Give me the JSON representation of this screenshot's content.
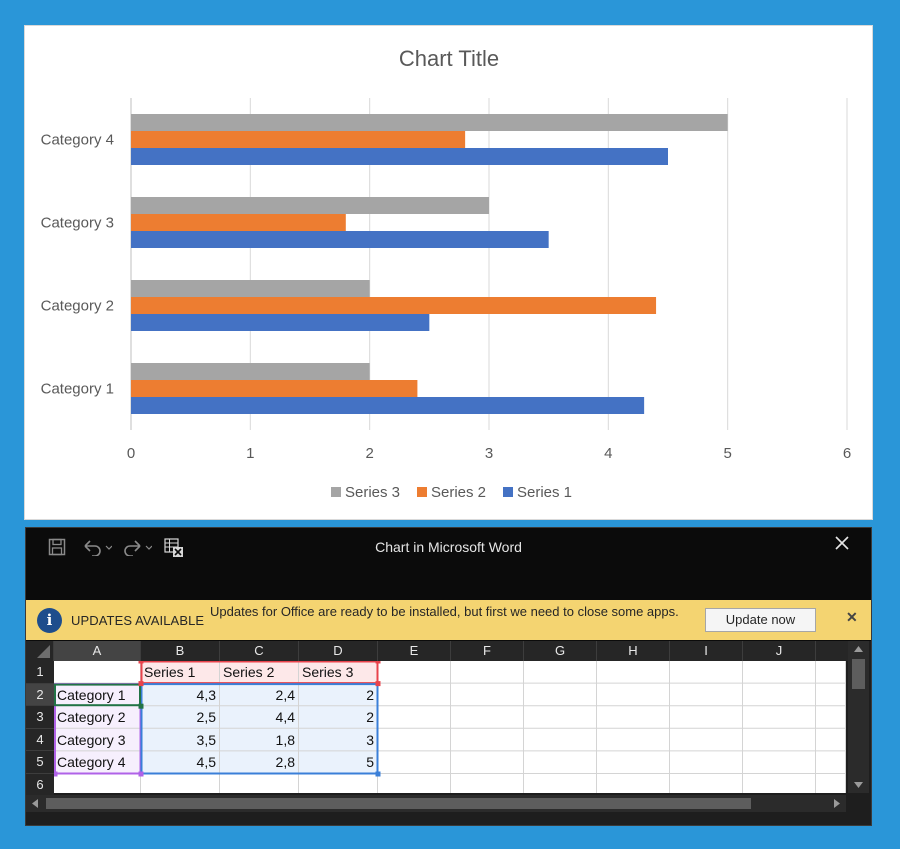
{
  "chart_data": {
    "type": "bar",
    "orientation": "horizontal",
    "title": "Chart Title",
    "categories": [
      "Category 1",
      "Category 2",
      "Category 3",
      "Category 4"
    ],
    "series": [
      {
        "name": "Series 1",
        "color": "#4472c4",
        "values": [
          4.3,
          2.5,
          3.5,
          4.5
        ]
      },
      {
        "name": "Series 2",
        "color": "#ed7d31",
        "values": [
          2.4,
          4.4,
          1.8,
          2.8
        ]
      },
      {
        "name": "Series 3",
        "color": "#a5a5a5",
        "values": [
          2,
          2,
          3,
          5
        ]
      }
    ],
    "xlim": [
      0,
      6
    ],
    "xticks": [
      "0",
      "1",
      "2",
      "3",
      "4",
      "5",
      "6"
    ],
    "legend_position": "bottom",
    "legend_order": [
      "Series 3",
      "Series 2",
      "Series 1"
    ],
    "grid": true
  },
  "window": {
    "title": "Chart in Microsoft Word",
    "save_icon": "save-icon",
    "undo_icon": "undo-icon",
    "redo_icon": "redo-icon",
    "edit_data_icon": "edit-data-in-excel-icon",
    "close_icon": "close-icon"
  },
  "update_bar": {
    "heading": "UPDATES AVAILABLE",
    "message": "Updates for Office are ready to be installed, but first we need to close some apps.",
    "button_label": "Update now",
    "close_glyph": "✕",
    "info_glyph": "i",
    "color": "#f4d471"
  },
  "sheet": {
    "columns": [
      "A",
      "B",
      "C",
      "D",
      "E",
      "F",
      "G",
      "H",
      "I",
      "J"
    ],
    "rows": [
      "1",
      "2",
      "3",
      "4",
      "5",
      "6"
    ],
    "cells": [
      [
        "",
        "Series 1",
        "Series 2",
        "Series 3"
      ],
      [
        "Category 1",
        "4,3",
        "2,4",
        "2"
      ],
      [
        "Category 2",
        "2,5",
        "4,4",
        "2"
      ],
      [
        "Category 3",
        "3,5",
        "1,8",
        "3"
      ],
      [
        "Category 4",
        "4,5",
        "2,8",
        "5"
      ],
      [
        "",
        "",
        "",
        ""
      ]
    ],
    "active_cell": "A2",
    "header_range_color": "#e8434c",
    "category_range_color": "#b062e8",
    "value_range_color": "#3a7fd8"
  }
}
